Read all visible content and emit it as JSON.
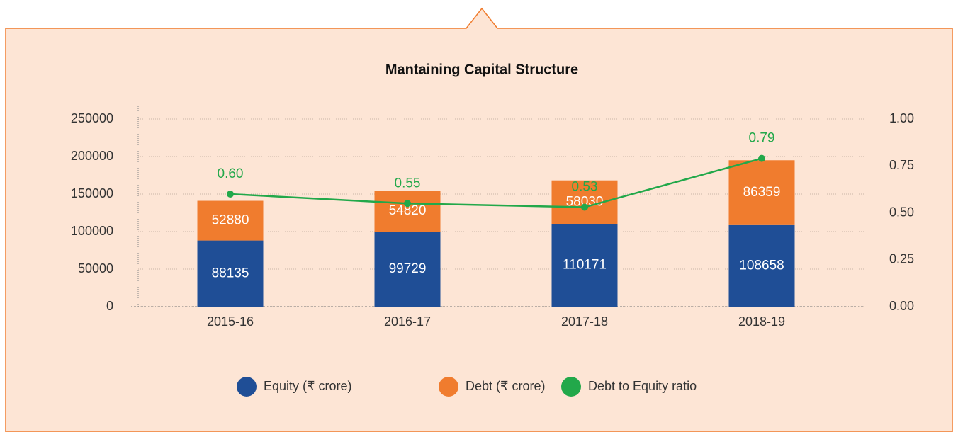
{
  "chart_data": {
    "type": "bar",
    "stacked": true,
    "title": "Mantaining Capital Structure",
    "categories": [
      "2015-16",
      "2016-17",
      "2017-18",
      "2018-19"
    ],
    "series": [
      {
        "name": "Equity (₹ crore)",
        "color": "#1f4e96",
        "values": [
          88135,
          99729,
          110171,
          108658
        ]
      },
      {
        "name": "Debt (₹ crore)",
        "color": "#f07c2e",
        "values": [
          52880,
          54820,
          58030,
          86359
        ]
      },
      {
        "name": "Debt to Equity ratio",
        "color": "#22a84a",
        "type": "line",
        "axis": "y2",
        "values": [
          0.6,
          0.55,
          0.53,
          0.79
        ],
        "value_labels": [
          "0.60",
          "0.55",
          "0.53",
          "0.79"
        ]
      }
    ],
    "ylim": [
      0,
      250000
    ],
    "yticks": [
      0,
      50000,
      100000,
      150000,
      200000,
      250000
    ],
    "y2lim": [
      0,
      1
    ],
    "y2ticks": [
      {
        "value": 0,
        "label": "0.00"
      },
      {
        "value": 0.25,
        "label": "0.25"
      },
      {
        "value": 0.5,
        "label": "0.50"
      },
      {
        "value": 0.75,
        "label": "0.75"
      },
      {
        "value": 1,
        "label": "1.00"
      }
    ],
    "grid": true,
    "legend": "bottom"
  }
}
